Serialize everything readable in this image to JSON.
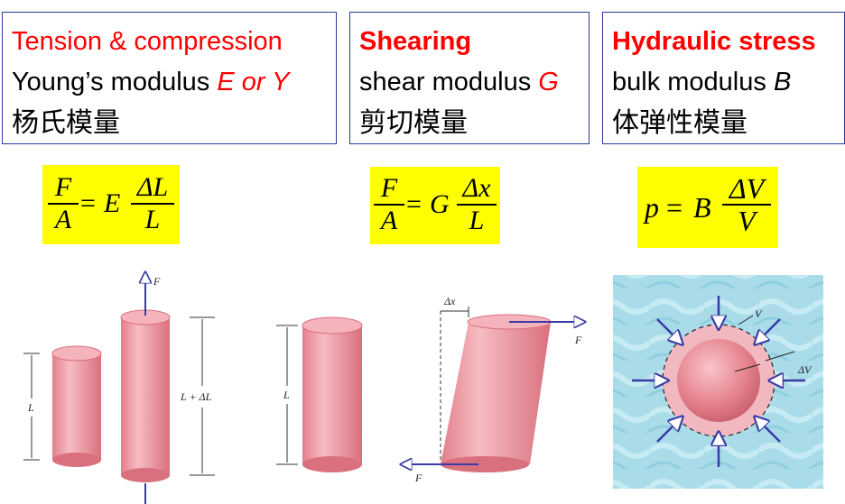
{
  "boxes": [
    {
      "title": "Tension & compression",
      "modulus": "Young’s modulus ",
      "symbol": "E or Y",
      "chinese": "杨氏模量"
    },
    {
      "title": "Shearing",
      "modulus": "shear modulus ",
      "symbol": "G",
      "chinese": "剪切模量"
    },
    {
      "title": "Hydraulic stress",
      "modulus": "bulk modulus ",
      "symbol": "B",
      "chinese": "体弹性模量"
    }
  ],
  "formulas": {
    "tension": {
      "lhs_num": "F",
      "lhs_den": "A",
      "equals": "=",
      "coef": "E",
      "rhs_num": "ΔL",
      "rhs_den": "L"
    },
    "shear": {
      "lhs_num": "F",
      "lhs_den": "A",
      "equals": "=",
      "coef": "G",
      "rhs_num": "Δx",
      "rhs_den": "L"
    },
    "bulk": {
      "lhs": "p",
      "equals": "=",
      "coef": "B",
      "rhs_num": "ΔV",
      "rhs_den": "V"
    }
  },
  "figure_labels": {
    "force": "F",
    "length": "L",
    "stretched_length": "L + ΔL",
    "shear_displacement": "Δx",
    "volume": "V",
    "volume_change": "ΔV"
  },
  "colors": {
    "highlight": "#ffff00",
    "title_red": "#ff0000",
    "box_border": "#2b3a9a",
    "cylinder": "#f0a0aa",
    "arrow": "#3a3aa8",
    "water": "#a8dce8"
  }
}
